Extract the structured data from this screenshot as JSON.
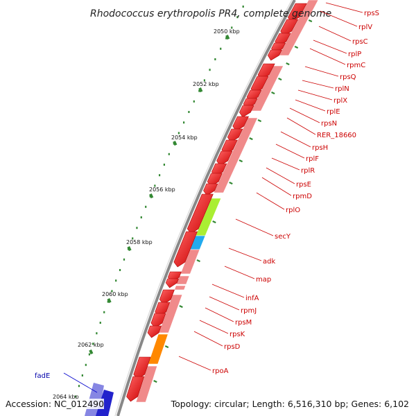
{
  "title": "Rhodococcus erythropolis PR4, complete genome",
  "kbp_labels": [
    "2050 kbp",
    "2052 kbp",
    "2054 kbp",
    "2056 kbp",
    "2058 kbp",
    "2060 kbp",
    "2062 kbp",
    "2064 kbp"
  ],
  "genes": [
    {
      "name": "rpsS",
      "color": "#cc0000"
    },
    {
      "name": "rplV",
      "color": "#cc0000"
    },
    {
      "name": "rpsC",
      "color": "#cc0000"
    },
    {
      "name": "rplP",
      "color": "#cc0000"
    },
    {
      "name": "rpmC",
      "color": "#cc0000"
    },
    {
      "name": "rpsQ",
      "color": "#cc0000"
    },
    {
      "name": "rplN",
      "color": "#cc0000"
    },
    {
      "name": "rplX",
      "color": "#cc0000"
    },
    {
      "name": "rplE",
      "color": "#cc0000"
    },
    {
      "name": "rpsN",
      "color": "#cc0000"
    },
    {
      "name": "RER_18660",
      "color": "#cc0000"
    },
    {
      "name": "rpsH",
      "color": "#cc0000"
    },
    {
      "name": "rplF",
      "color": "#cc0000"
    },
    {
      "name": "rplR",
      "color": "#cc0000"
    },
    {
      "name": "rpsE",
      "color": "#cc0000"
    },
    {
      "name": "rpmD",
      "color": "#cc0000"
    },
    {
      "name": "rplO",
      "color": "#cc0000"
    },
    {
      "name": "secY",
      "color": "#cc0000"
    },
    {
      "name": "adk",
      "color": "#cc0000"
    },
    {
      "name": "map",
      "color": "#cc0000"
    },
    {
      "name": "infA",
      "color": "#cc0000"
    },
    {
      "name": "rpmJ",
      "color": "#cc0000"
    },
    {
      "name": "rpsM",
      "color": "#cc0000"
    },
    {
      "name": "rpsK",
      "color": "#cc0000"
    },
    {
      "name": "rpsD",
      "color": "#cc0000"
    },
    {
      "name": "rpoA",
      "color": "#cc0000"
    },
    {
      "name": "fadE",
      "color": "#0000aa"
    }
  ],
  "footer": {
    "accession": "Accession: NC_012490",
    "topology": "Topology: circular; Length: 6,516,310 bp; Genes: 6,102"
  },
  "colors": {
    "cds": "#ee1111",
    "cds_light": "#f08a8a",
    "secY": "#aaee33",
    "adk": "#22aaee",
    "rpoA": "#ff8800",
    "fadE": "#2222cc",
    "tick": "#338833",
    "backbone": "#888888"
  }
}
